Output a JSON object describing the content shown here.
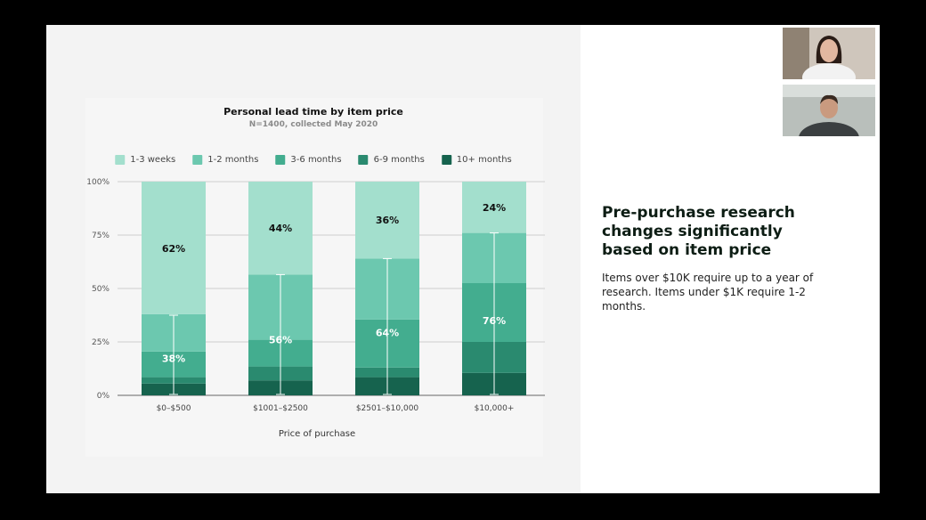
{
  "slide": {
    "headline": "Pre-purchase research changes significantly based on item price",
    "body": "Items over $10K require up to a year of research. Items under $1K require 1-2 months."
  },
  "colors": {
    "seg_1_3_weeks": "#a3dfcd",
    "seg_1_2_months": "#6cc8af",
    "seg_3_6_months": "#43ad8f",
    "seg_6_9_months": "#2a8a6f",
    "seg_10_plus_months": "#16634e"
  },
  "chart_data": {
    "type": "bar",
    "stacked": true,
    "title": "Personal lead time by item price",
    "subtitle": "N=1400, collected May 2020",
    "xlabel": "Price of purchase",
    "ylabel": "",
    "ylim": [
      0,
      100
    ],
    "yticks": [
      "0%",
      "25%",
      "50%",
      "75%",
      "100%"
    ],
    "grid": true,
    "legend_position": "top",
    "categories": [
      "$0–$500",
      "$1001–$2500",
      "$2501–$10,000",
      "$10,000+"
    ],
    "series": [
      {
        "name": "10+ months",
        "values": [
          5.5,
          7,
          8.5,
          10.5
        ]
      },
      {
        "name": "6-9 months",
        "values": [
          3,
          6.5,
          4.5,
          14.5
        ]
      },
      {
        "name": "3-6 months",
        "values": [
          12,
          12.5,
          22.5,
          27.5
        ]
      },
      {
        "name": "1-2 months",
        "values": [
          17.5,
          30.5,
          28.5,
          23.5
        ]
      },
      {
        "name": "1-3 weeks",
        "values": [
          62,
          43.5,
          36,
          24
        ]
      }
    ],
    "bracket_values": [
      37.5,
      56.5,
      64,
      76
    ],
    "labels_upper": [
      "62%",
      "44%",
      "36%",
      "24%"
    ],
    "labels_lower": [
      "38%",
      "56%",
      "64%",
      "76%"
    ]
  },
  "video": {
    "participant_1": "participant-woman",
    "participant_2": "participant-man"
  }
}
